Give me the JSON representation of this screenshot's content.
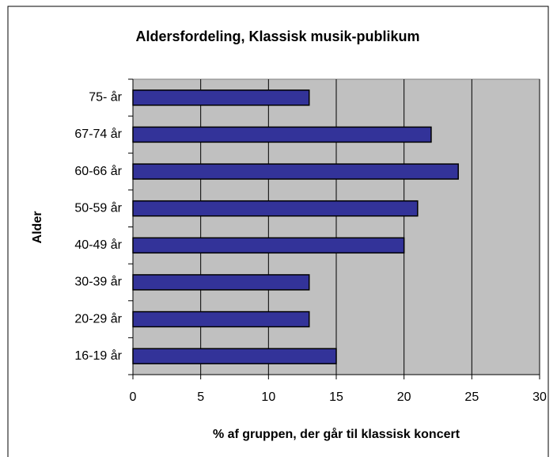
{
  "chart_data": {
    "type": "hbar",
    "title": "Aldersfordeling, Klassisk musik-publikum",
    "xlabel": "% af gruppen, der går til klassisk koncert",
    "ylabel": "Alder",
    "categories": [
      "75- år",
      "67-74 år",
      "60-66 år",
      "50-59 år",
      "40-49 år",
      "30-39 år",
      "20-29 år",
      "16-19 år"
    ],
    "values": [
      13,
      22,
      24,
      21,
      20,
      13,
      13,
      15
    ],
    "color": "#333399",
    "xlim": [
      0,
      30
    ],
    "xticks": [
      0,
      5,
      10,
      15,
      20,
      25,
      30
    ],
    "grid": true
  }
}
